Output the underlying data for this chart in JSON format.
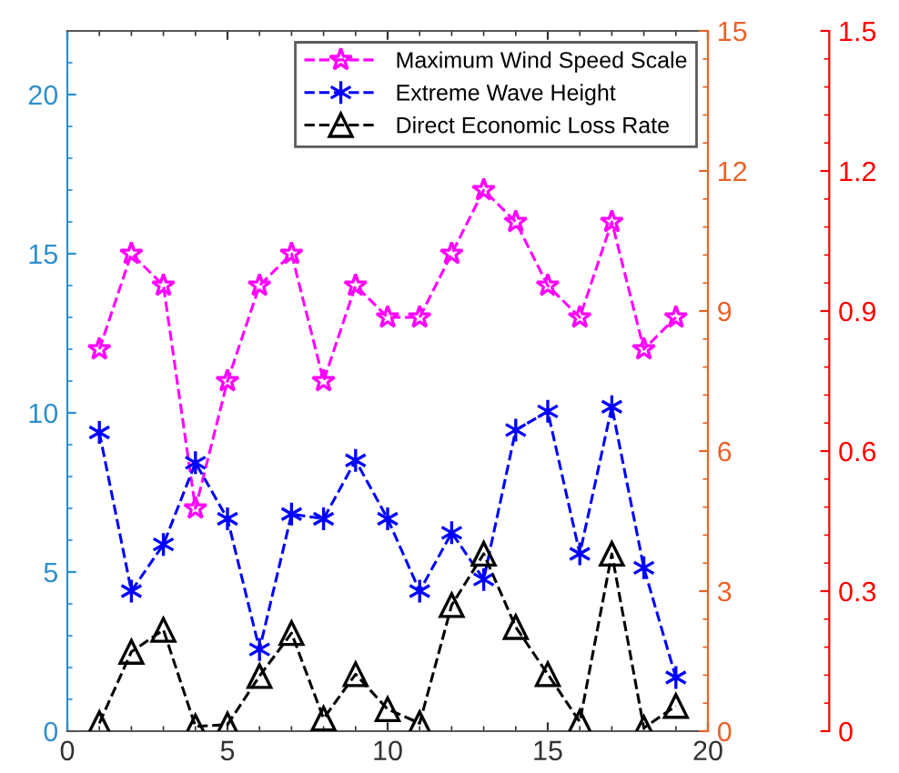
{
  "chart_data": {
    "type": "line",
    "x": [
      1,
      2,
      3,
      4,
      5,
      6,
      7,
      8,
      9,
      10,
      11,
      12,
      13,
      14,
      15,
      16,
      17,
      18,
      19
    ],
    "series": [
      {
        "name": "Maximum Wind Speed Scale",
        "color": "#ff00ff",
        "marker": "star",
        "values": [
          12,
          15,
          14,
          7,
          11,
          14,
          15,
          11,
          14,
          13,
          13,
          15,
          17,
          16,
          14,
          13,
          16,
          12,
          13
        ]
      },
      {
        "name": "Extreme Wave Height",
        "color": "#0000ff",
        "marker": "cross",
        "axis": "y2",
        "values": [
          6.4,
          3.0,
          4.0,
          5.75,
          4.55,
          1.75,
          4.65,
          4.55,
          5.8,
          4.55,
          3.0,
          4.25,
          3.25,
          6.45,
          6.85,
          3.8,
          6.95,
          3.5,
          1.15
        ]
      },
      {
        "name": "Direct Economic Loss Rate",
        "color": "#000000",
        "marker": "triangle",
        "axis": "y3",
        "values": [
          0.017,
          0.17,
          0.217,
          0.01,
          0.014,
          0.118,
          0.21,
          0.027,
          0.122,
          0.047,
          0.017,
          0.27,
          0.38,
          0.223,
          0.122,
          0.02,
          0.38,
          0.007,
          0.054
        ]
      }
    ],
    "line_style": "dashed",
    "xlim": [
      0,
      20
    ],
    "xticks": [
      0,
      5,
      10,
      15,
      20
    ],
    "ylim": [
      0,
      22
    ],
    "yticks": [
      0,
      5,
      10,
      15,
      20
    ],
    "y2lim": [
      0,
      15
    ],
    "y2ticks": [
      0,
      3,
      6,
      9,
      12,
      15
    ],
    "y3lim": [
      0,
      1.5
    ],
    "y3ticks": [
      0,
      {
        "value": 0.3,
        "label": "0.3"
      },
      {
        "value": 0.6,
        "label": "0.6"
      },
      {
        "value": 0.9,
        "label": "0.9"
      },
      {
        "value": 1.2,
        "label": "1.2"
      },
      {
        "value": 1.5,
        "label": "1.5"
      }
    ],
    "grid": false,
    "legend": "top right"
  }
}
